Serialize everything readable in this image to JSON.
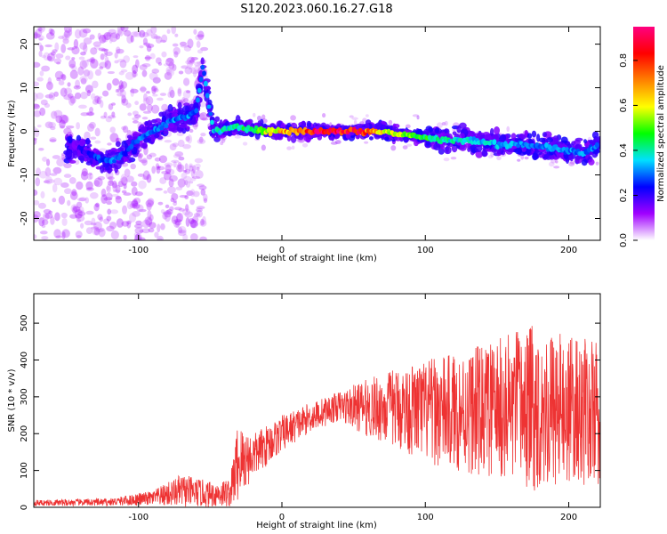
{
  "title": "S120.2023.060.16.27.G18",
  "chart_data": [
    {
      "type": "heatmap",
      "xlabel": "Height of straight line (km)",
      "ylabel": "Frequency (Hz)",
      "xlim": [
        -173,
        222
      ],
      "ylim": [
        -25,
        24
      ],
      "xticks": [
        -100,
        0,
        100,
        200
      ],
      "yticks": [
        -20,
        -10,
        0,
        10,
        20
      ],
      "colorbar": {
        "label": "Normalized spectral amplitude",
        "range": [
          0,
          0.95
        ],
        "ticks": [
          0.0,
          0.2,
          0.4,
          0.6,
          0.8
        ],
        "colors": [
          "#ffffff",
          "#a000ff",
          "#0000ff",
          "#00e0ff",
          "#00ff00",
          "#ffff00",
          "#ff8000",
          "#ff0000",
          "#ff0080"
        ]
      },
      "ridge": [
        {
          "x": -140,
          "y": -4,
          "amp": 0.2
        },
        {
          "x": -130,
          "y": -6,
          "amp": 0.25
        },
        {
          "x": -120,
          "y": -7,
          "amp": 0.3
        },
        {
          "x": -110,
          "y": -5,
          "amp": 0.25
        },
        {
          "x": -100,
          "y": -2,
          "amp": 0.3
        },
        {
          "x": -90,
          "y": 0,
          "amp": 0.3
        },
        {
          "x": -80,
          "y": 2,
          "amp": 0.3
        },
        {
          "x": -70,
          "y": 3,
          "amp": 0.3
        },
        {
          "x": -60,
          "y": 4,
          "amp": 0.3
        },
        {
          "x": -55,
          "y": 15,
          "amp": 0.3
        },
        {
          "x": -48,
          "y": 0,
          "amp": 0.35
        },
        {
          "x": -30,
          "y": 1,
          "amp": 0.4
        },
        {
          "x": -10,
          "y": 0,
          "amp": 0.55
        },
        {
          "x": 10,
          "y": 0,
          "amp": 0.75
        },
        {
          "x": 30,
          "y": 0,
          "amp": 0.9
        },
        {
          "x": 50,
          "y": 0,
          "amp": 0.85
        },
        {
          "x": 70,
          "y": 0,
          "amp": 0.6
        },
        {
          "x": 90,
          "y": -1,
          "amp": 0.5
        },
        {
          "x": 110,
          "y": -2,
          "amp": 0.4
        },
        {
          "x": 130,
          "y": -2,
          "amp": 0.35
        },
        {
          "x": 150,
          "y": -3,
          "amp": 0.35
        },
        {
          "x": 170,
          "y": -3,
          "amp": 0.3
        },
        {
          "x": 190,
          "y": -4,
          "amp": 0.3
        },
        {
          "x": 210,
          "y": -5,
          "amp": 0.3
        },
        {
          "x": 220,
          "y": -3,
          "amp": 0.3
        }
      ]
    },
    {
      "type": "line",
      "xlabel": "Height of straight line (km)",
      "ylabel": "SNR (10 * v/v)",
      "xlim": [
        -173,
        222
      ],
      "ylim": [
        0,
        580
      ],
      "xticks": [
        -100,
        0,
        100,
        200
      ],
      "yticks": [
        0,
        100,
        200,
        300,
        400,
        500
      ],
      "color": "#ee3333",
      "envelope": [
        {
          "x": -173,
          "y": 12,
          "amp": 8
        },
        {
          "x": -120,
          "y": 14,
          "amp": 10
        },
        {
          "x": -90,
          "y": 25,
          "amp": 20
        },
        {
          "x": -70,
          "y": 45,
          "amp": 45
        },
        {
          "x": -50,
          "y": 35,
          "amp": 35
        },
        {
          "x": -36,
          "y": 40,
          "amp": 40
        },
        {
          "x": -31,
          "y": 120,
          "amp": 110
        },
        {
          "x": -20,
          "y": 140,
          "amp": 60
        },
        {
          "x": 0,
          "y": 200,
          "amp": 50
        },
        {
          "x": 20,
          "y": 245,
          "amp": 40
        },
        {
          "x": 40,
          "y": 275,
          "amp": 40
        },
        {
          "x": 60,
          "y": 270,
          "amp": 80
        },
        {
          "x": 80,
          "y": 270,
          "amp": 110
        },
        {
          "x": 100,
          "y": 260,
          "amp": 140
        },
        {
          "x": 120,
          "y": 260,
          "amp": 160
        },
        {
          "x": 150,
          "y": 265,
          "amp": 190
        },
        {
          "x": 170,
          "y": 270,
          "amp": 230
        },
        {
          "x": 200,
          "y": 265,
          "amp": 200
        },
        {
          "x": 222,
          "y": 250,
          "amp": 200
        }
      ]
    }
  ]
}
